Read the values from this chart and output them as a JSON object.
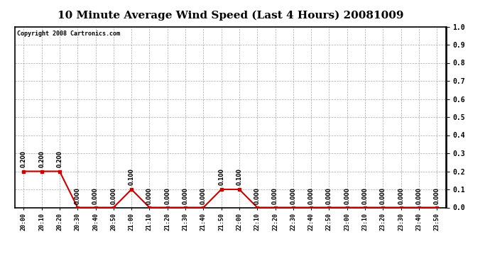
{
  "title": "10 Minute Average Wind Speed (Last 4 Hours) 20081009",
  "copyright": "Copyright 2008 Cartronics.com",
  "x_labels": [
    "20:00",
    "20:10",
    "20:20",
    "20:30",
    "20:40",
    "20:50",
    "21:00",
    "21:10",
    "21:20",
    "21:30",
    "21:40",
    "21:50",
    "22:00",
    "22:10",
    "22:20",
    "22:30",
    "22:40",
    "22:50",
    "23:00",
    "23:10",
    "23:20",
    "23:30",
    "23:40",
    "23:50"
  ],
  "y_values": [
    0.2,
    0.2,
    0.2,
    0.0,
    0.0,
    0.0,
    0.1,
    0.0,
    0.0,
    0.0,
    0.0,
    0.1,
    0.1,
    0.0,
    0.0,
    0.0,
    0.0,
    0.0,
    0.0,
    0.0,
    0.0,
    0.0,
    0.0,
    0.0
  ],
  "line_color": "#cc0000",
  "marker_color": "#cc0000",
  "bg_color": "#ffffff",
  "plot_bg_color": "#ffffff",
  "grid_color": "#aaaaaa",
  "ylim": [
    0.0,
    1.0
  ],
  "yticks": [
    0.0,
    0.1,
    0.2,
    0.3,
    0.4,
    0.5,
    0.6,
    0.7,
    0.8,
    0.9,
    1.0
  ],
  "title_fontsize": 11,
  "label_fontsize": 6,
  "annotation_fontsize": 5.5,
  "copyright_fontsize": 6
}
